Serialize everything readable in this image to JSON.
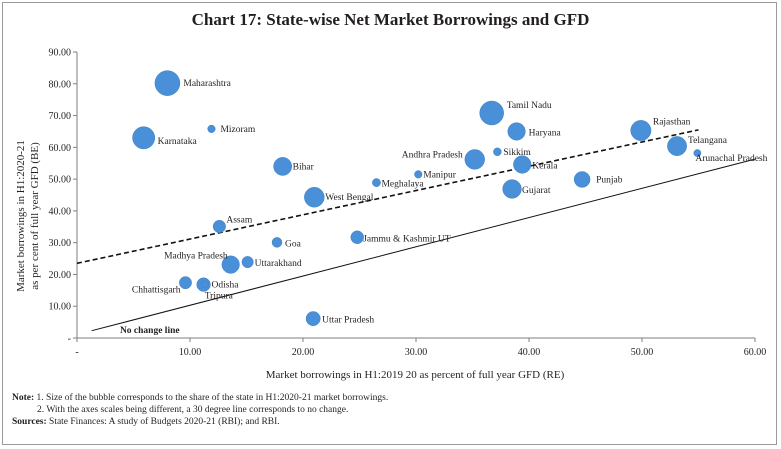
{
  "chart_data": {
    "type": "scatter",
    "title": "Chart 17: State-wise Net Market Borrowings and GFD",
    "xlabel": "Market borrowings in H1:2019 20 as percent of full year GFD (RE)",
    "ylabel_line1": "Market borrowings in H1:2020-21",
    "ylabel_line2": "as per cent of full year GFD (BE)",
    "xlim": [
      0,
      60
    ],
    "ylim": [
      0,
      90
    ],
    "x_ticks": [
      "-",
      "10.00",
      "20.00",
      "30.00",
      "40.00",
      "50.00",
      "60.00"
    ],
    "y_ticks": [
      "-",
      "10.00",
      "20.00",
      "30.00",
      "40.00",
      "50.00",
      "60.00",
      "70.00",
      "80.00",
      "90.00"
    ],
    "no_change_label": "No change line",
    "points": [
      {
        "name": "Maharashtra",
        "x": 8.0,
        "y": 80.2,
        "size": 12.0
      },
      {
        "name": "Karnataka",
        "x": 5.9,
        "y": 63.0,
        "size": 9.5
      },
      {
        "name": "Mizoram",
        "x": 11.9,
        "y": 65.8,
        "size": 1.1
      },
      {
        "name": "Bihar",
        "x": 18.2,
        "y": 54.0,
        "size": 6.3
      },
      {
        "name": "West Bengal",
        "x": 21.0,
        "y": 44.3,
        "size": 7.6
      },
      {
        "name": "Meghalaya",
        "x": 26.5,
        "y": 48.9,
        "size": 1.3
      },
      {
        "name": "Manipur",
        "x": 30.2,
        "y": 51.5,
        "size": 1.1
      },
      {
        "name": "Andhra Pradesh",
        "x": 35.2,
        "y": 56.2,
        "size": 7.5
      },
      {
        "name": "Tamil Nadu",
        "x": 36.7,
        "y": 70.8,
        "size": 11.0
      },
      {
        "name": "Haryana",
        "x": 38.9,
        "y": 65.0,
        "size": 5.9
      },
      {
        "name": "Sikkim",
        "x": 37.2,
        "y": 58.6,
        "size": 1.2
      },
      {
        "name": "Kerala",
        "x": 39.4,
        "y": 54.6,
        "size": 5.9
      },
      {
        "name": "Gujarat",
        "x": 38.5,
        "y": 46.9,
        "size": 6.7
      },
      {
        "name": "Punjab",
        "x": 44.7,
        "y": 49.9,
        "size": 4.9
      },
      {
        "name": "Rajasthan",
        "x": 49.9,
        "y": 65.3,
        "size": 7.9
      },
      {
        "name": "Telangana",
        "x": 53.1,
        "y": 60.4,
        "size": 7.1
      },
      {
        "name": "Arunachal Pradesh",
        "x": 54.9,
        "y": 58.2,
        "size": 1.0
      },
      {
        "name": "Assam",
        "x": 12.6,
        "y": 35.1,
        "size": 3.0
      },
      {
        "name": "Goa",
        "x": 17.7,
        "y": 30.1,
        "size": 1.9
      },
      {
        "name": "Jammu & Kashmir UT",
        "x": 24.8,
        "y": 31.7,
        "size": 3.2
      },
      {
        "name": "Madhya Pradesh",
        "x": 13.6,
        "y": 23.1,
        "size": 5.9
      },
      {
        "name": "Uttarakhand",
        "x": 15.1,
        "y": 23.9,
        "size": 2.5
      },
      {
        "name": "Chhattisgarh",
        "x": 9.6,
        "y": 17.4,
        "size": 2.9
      },
      {
        "name": "Odisha",
        "x": 11.2,
        "y": 16.8,
        "size": 3.6
      },
      {
        "name": "Tripura",
        "x": 11.3,
        "y": 16.9,
        "size": 1.0
      },
      {
        "name": "Uttar Pradesh",
        "x": 20.9,
        "y": 6.1,
        "size": 3.9
      }
    ],
    "trend_line": {
      "style": "dashed",
      "x": [
        0,
        55
      ],
      "y": [
        23.5,
        65.5
      ]
    },
    "no_change_line": {
      "style": "solid",
      "x": [
        1.3,
        60
      ],
      "y": [
        2.3,
        56.3
      ]
    }
  },
  "notes": {
    "note_label": "Note:",
    "note1": "1. Size of the bubble corresponds to the share of the state in H1:2020-21 market borrowings.",
    "note2": "2. With the axes scales being different, a 30 degree line corresponds to no change.",
    "sources_label": "Sources:",
    "sources_text": "State Finances: A study of Budgets 2020-21 (RBI); and RBI."
  },
  "colors": {
    "bubble": "#4a90d9",
    "axis": "#7f7f7f",
    "text": "#231f20"
  }
}
